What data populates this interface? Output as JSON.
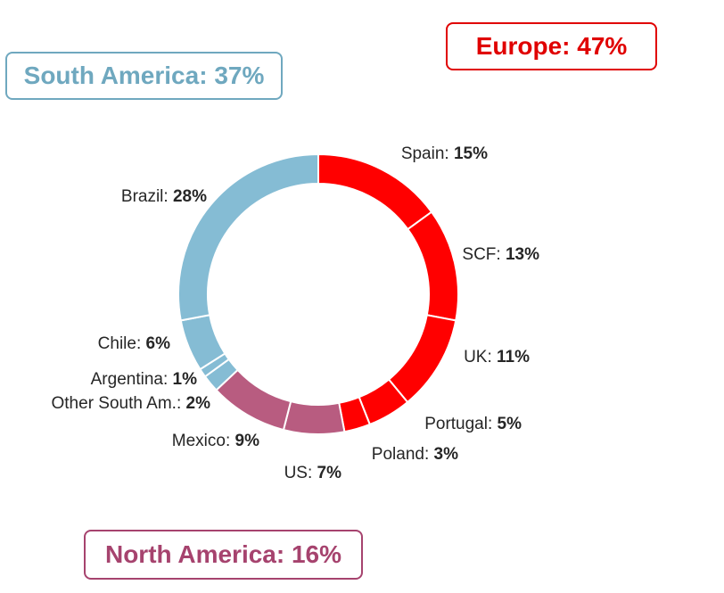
{
  "chart_data": {
    "type": "pie",
    "style": "donut",
    "groups": [
      {
        "name": "Europe",
        "label": "Europe:",
        "value_label": "47%",
        "value": 47,
        "color": "#e00000"
      },
      {
        "name": "South America",
        "label": "South America:",
        "value_label": "37%",
        "value": 37,
        "color": "#6fa8bf"
      },
      {
        "name": "North America",
        "label": "North America:",
        "value_label": "16%",
        "value": 16,
        "color": "#a6436e"
      }
    ],
    "slices": [
      {
        "label": "Spain:",
        "value_label": "15%",
        "value": 15,
        "group": "Europe",
        "color": "#ff0000"
      },
      {
        "label": "SCF:",
        "value_label": "13%",
        "value": 13,
        "group": "Europe",
        "color": "#ff0000"
      },
      {
        "label": "UK:",
        "value_label": "11%",
        "value": 11,
        "group": "Europe",
        "color": "#ff0000"
      },
      {
        "label": "Portugal:",
        "value_label": "5%",
        "value": 5,
        "group": "Europe",
        "color": "#ff0000"
      },
      {
        "label": "Poland:",
        "value_label": "3%",
        "value": 3,
        "group": "Europe",
        "color": "#ff0000"
      },
      {
        "label": "US:",
        "value_label": "7%",
        "value": 7,
        "group": "North America",
        "color": "#b85c80"
      },
      {
        "label": "Mexico:",
        "value_label": "9%",
        "value": 9,
        "group": "North America",
        "color": "#b85c80"
      },
      {
        "label": "Other South Am.:",
        "value_label": "2%",
        "value": 2,
        "group": "South America",
        "color": "#85bcd4"
      },
      {
        "label": "Argentina:",
        "value_label": "1%",
        "value": 1,
        "group": "South America",
        "color": "#85bcd4"
      },
      {
        "label": "Chile:",
        "value_label": "6%",
        "value": 6,
        "group": "South America",
        "color": "#85bcd4"
      },
      {
        "label": "Brazil:",
        "value_label": "28%",
        "value": 28,
        "group": "South America",
        "color": "#85bcd4"
      }
    ]
  }
}
